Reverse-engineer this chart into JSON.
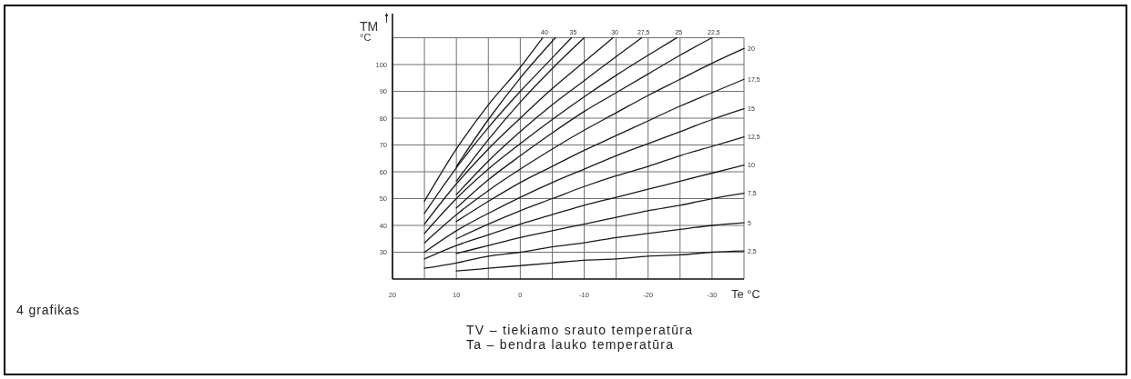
{
  "chart_data": {
    "type": "line",
    "xlabel": "Te °C",
    "ylabel": "TM °C",
    "xlim": [
      20,
      -35
    ],
    "ylim": [
      20,
      119
    ],
    "xticks": [
      20,
      {
        "value": 15,
        "label": null
      },
      10,
      {
        "value": 5,
        "label": null
      },
      0,
      {
        "value": -5,
        "label": null
      },
      -10,
      {
        "value": -15,
        "label": null
      },
      -20,
      {
        "value": -25,
        "label": null
      },
      -30,
      {
        "value": -35,
        "label": null
      }
    ],
    "yticks": [
      30,
      40,
      50,
      60,
      70,
      80,
      90,
      100,
      {
        "value": 110,
        "label": null
      }
    ],
    "grid": true,
    "legend": false,
    "line_style": "solid",
    "annotations": [
      "4 grafikas",
      "TV – tiekiamo srauto temperatūra",
      "Ta – bendra lauko temperatūra"
    ],
    "series": [
      {
        "name": "40",
        "color": "#1a1a1a",
        "x": [
          15,
          10,
          5,
          0,
          -3.5
        ],
        "values": [
          49,
          68.5,
          85,
          99,
          110
        ]
      },
      {
        "color": "#1a1a1a",
        "x": [
          10,
          5,
          0,
          -5.5
        ],
        "values": [
          62,
          79.5,
          95,
          110
        ]
      },
      {
        "name": "35",
        "color": "#1a1a1a",
        "x": [
          15,
          10,
          5,
          0,
          -5,
          -8
        ],
        "values": [
          44.5,
          61.5,
          76.5,
          90,
          102.5,
          110
        ]
      },
      {
        "color": "#1a1a1a",
        "x": [
          10,
          5,
          0,
          -5,
          -10
        ],
        "values": [
          56.5,
          72,
          86,
          98.5,
          110
        ]
      },
      {
        "name": "30",
        "color": "#1a1a1a",
        "x": [
          15,
          10,
          5,
          0,
          -5,
          -10,
          -14.5
        ],
        "values": [
          40.5,
          55.5,
          68.5,
          80,
          91,
          101,
          110
        ]
      },
      {
        "name": "27,5",
        "color": "#1a1a1a",
        "x": [
          10,
          5,
          0,
          -5,
          -10,
          -15,
          -19
        ],
        "values": [
          51.5,
          64,
          75,
          85,
          94,
          103,
          110
        ]
      },
      {
        "name": "25",
        "color": "#1a1a1a",
        "x": [
          15,
          10,
          5,
          0,
          -5,
          -10,
          -15,
          -20,
          -24.5
        ],
        "values": [
          37,
          50,
          61,
          70.5,
          79.5,
          88,
          96,
          103.5,
          110
        ]
      },
      {
        "name": "22,5",
        "color": "#1a1a1a",
        "x": [
          10,
          5,
          0,
          -5,
          -10,
          -15,
          -20,
          -25,
          -30
        ],
        "values": [
          46.5,
          57,
          66,
          74.5,
          82.5,
          89.5,
          96.5,
          103.5,
          110
        ]
      },
      {
        "name": "20",
        "color": "#1a1a1a",
        "x": [
          15,
          10,
          5,
          0,
          -5,
          -10,
          -15,
          -20,
          -25,
          -30,
          -35
        ],
        "values": [
          33.5,
          44,
          53,
          61,
          68.5,
          75.5,
          82,
          88.5,
          94.5,
          100.5,
          106
        ]
      },
      {
        "name": "17,5",
        "color": "#1a1a1a",
        "x": [
          10,
          5,
          0,
          -5,
          -10,
          -15,
          -20,
          -25,
          -30,
          -35
        ],
        "values": [
          41.5,
          49,
          56,
          62,
          68,
          73.5,
          79,
          84.5,
          89.5,
          94.5
        ]
      },
      {
        "name": "15",
        "color": "#1a1a1a",
        "x": [
          15,
          10,
          5,
          0,
          -5,
          -10,
          -15,
          -20,
          -25,
          -30,
          -35
        ],
        "values": [
          30,
          38,
          44.5,
          50.5,
          56,
          61,
          66,
          70.5,
          75,
          79.5,
          83.5
        ]
      },
      {
        "name": "12,5",
        "color": "#1a1a1a",
        "x": [
          10,
          5,
          0,
          -5,
          -10,
          -15,
          -20,
          -25,
          -30,
          -35
        ],
        "values": [
          35,
          40.5,
          45.5,
          50,
          54.5,
          58.5,
          62,
          66,
          69.5,
          73
        ]
      },
      {
        "name": "10",
        "color": "#1a1a1a",
        "x": [
          15,
          10,
          5,
          0,
          -5,
          -10,
          -15,
          -20,
          -25,
          -30,
          -35
        ],
        "values": [
          27.5,
          32.5,
          36.5,
          40.5,
          44,
          47.5,
          50.5,
          53.5,
          56.5,
          59.5,
          62.5
        ]
      },
      {
        "name": "7,5",
        "color": "#1a1a1a",
        "x": [
          10,
          5,
          0,
          -5,
          -10,
          -15,
          -20,
          -25,
          -30,
          -35
        ],
        "values": [
          29.5,
          32.5,
          35.5,
          38,
          40.5,
          43,
          45.5,
          47.5,
          50,
          52
        ]
      },
      {
        "name": "5",
        "color": "#1a1a1a",
        "x": [
          15,
          10,
          5,
          0,
          -5,
          -10,
          -15,
          -20,
          -25,
          -30,
          -35
        ],
        "values": [
          24,
          26,
          28.5,
          30,
          32,
          33.5,
          35.5,
          37,
          38.5,
          40,
          41
        ]
      },
      {
        "name": "2,5",
        "color": "#1a1a1a",
        "x": [
          10,
          5,
          0,
          -5,
          -10,
          -15,
          -20,
          -25,
          -30,
          -35
        ],
        "values": [
          23,
          24,
          25,
          26,
          27,
          27.5,
          28.5,
          29,
          30,
          30.5
        ]
      }
    ]
  }
}
